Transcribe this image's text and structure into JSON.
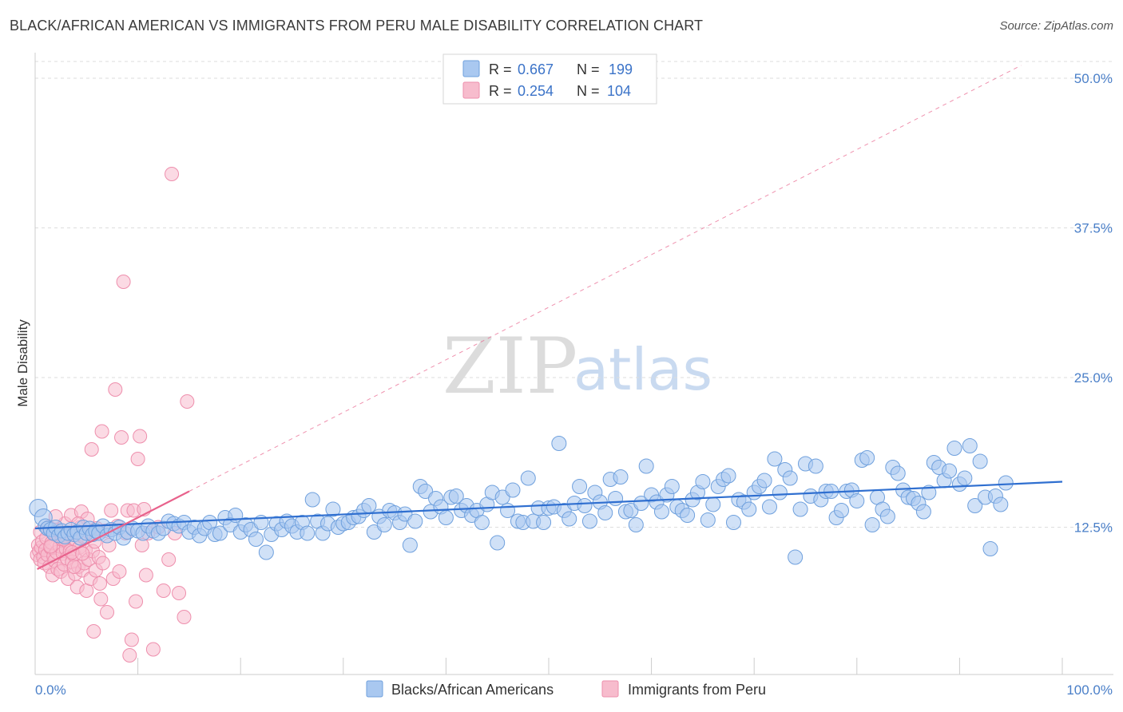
{
  "header": {
    "title": "BLACK/AFRICAN AMERICAN VS IMMIGRANTS FROM PERU MALE DISABILITY CORRELATION CHART",
    "source": "Source: ZipAtlas.com"
  },
  "watermark": {
    "zip": "ZIP",
    "atlas": "atlas"
  },
  "legend": {
    "rows": [
      {
        "r_label": "R = ",
        "r_value": "0.667",
        "n_label": "N = ",
        "n_value": "199",
        "color": "#a9c8f0"
      },
      {
        "r_label": "R = ",
        "r_value": "0.254",
        "n_label": "N = ",
        "n_value": "104",
        "color": "#f5b6c8"
      }
    ]
  },
  "colors": {
    "blue_fill": "#a9c8f0",
    "blue_stroke": "#6fa0dd",
    "blue_line": "#2f6fd0",
    "pink_fill": "#f7bccd",
    "pink_stroke": "#ee8fad",
    "pink_line": "#e8628c",
    "tick_text": "#4a7fc8",
    "grid": "#dddddd"
  },
  "chart_data": {
    "type": "scatter",
    "title": "BLACK/AFRICAN AMERICAN VS IMMIGRANTS FROM PERU MALE DISABILITY CORRELATION CHART",
    "xlabel": "",
    "ylabel": "Male Disability",
    "xlim": [
      0,
      100
    ],
    "ylim": [
      0,
      50
    ],
    "x_tick_labels": [
      "0.0%",
      "100.0%"
    ],
    "y_ticks": [
      12.5,
      25.0,
      37.5,
      50.0
    ],
    "y_tick_labels": [
      "12.5%",
      "25.0%",
      "37.5%",
      "50.0%"
    ],
    "grid": true,
    "legend_position": "top-center",
    "series": [
      {
        "name": "Blacks/African Americans",
        "R": 0.667,
        "N": 199,
        "trend": {
          "x": [
            0,
            100
          ],
          "y": [
            12.4,
            16.3
          ]
        },
        "points": [
          [
            0.3,
            14.1
          ],
          [
            0.8,
            13.3
          ],
          [
            1.0,
            12.6
          ],
          [
            1.2,
            12.4
          ],
          [
            1.5,
            12.3
          ],
          [
            1.8,
            12.0
          ],
          [
            2.0,
            12.5
          ],
          [
            2.3,
            11.8
          ],
          [
            2.6,
            12.2
          ],
          [
            2.9,
            11.7
          ],
          [
            3.2,
            12.0
          ],
          [
            3.5,
            12.3
          ],
          [
            3.8,
            11.9
          ],
          [
            4.1,
            12.1
          ],
          [
            4.4,
            11.6
          ],
          [
            4.7,
            12.5
          ],
          [
            5.0,
            12.0
          ],
          [
            5.3,
            12.4
          ],
          [
            5.6,
            11.9
          ],
          [
            5.9,
            12.2
          ],
          [
            6.2,
            12.0
          ],
          [
            6.6,
            12.6
          ],
          [
            7.0,
            11.8
          ],
          [
            7.4,
            12.3
          ],
          [
            7.8,
            12.0
          ],
          [
            8.2,
            12.5
          ],
          [
            8.6,
            11.6
          ],
          [
            9.0,
            12.1
          ],
          [
            9.5,
            12.4
          ],
          [
            10.0,
            12.2
          ],
          [
            10.5,
            12.0
          ],
          [
            11.0,
            12.6
          ],
          [
            11.5,
            12.2
          ],
          [
            12.0,
            12.0
          ],
          [
            12.5,
            12.4
          ],
          [
            13.0,
            13.0
          ],
          [
            13.5,
            12.8
          ],
          [
            14.0,
            12.6
          ],
          [
            14.5,
            12.9
          ],
          [
            15.0,
            12.1
          ],
          [
            15.5,
            12.5
          ],
          [
            16.0,
            11.8
          ],
          [
            16.5,
            12.4
          ],
          [
            17.0,
            12.9
          ],
          [
            17.5,
            11.9
          ],
          [
            18.0,
            12.0
          ],
          [
            18.5,
            13.3
          ],
          [
            19.0,
            12.7
          ],
          [
            19.5,
            13.5
          ],
          [
            20.0,
            12.1
          ],
          [
            20.5,
            12.7
          ],
          [
            21.0,
            12.3
          ],
          [
            21.5,
            11.5
          ],
          [
            22.0,
            12.9
          ],
          [
            22.5,
            10.4
          ],
          [
            23.0,
            11.9
          ],
          [
            23.5,
            12.8
          ],
          [
            24.0,
            12.3
          ],
          [
            24.5,
            13.0
          ],
          [
            25.0,
            12.6
          ],
          [
            25.5,
            12.1
          ],
          [
            26.0,
            12.9
          ],
          [
            26.5,
            12.0
          ],
          [
            27.0,
            14.8
          ],
          [
            27.5,
            13.0
          ],
          [
            28.0,
            12.0
          ],
          [
            28.5,
            12.8
          ],
          [
            29.0,
            14.0
          ],
          [
            29.5,
            12.5
          ],
          [
            30.0,
            12.8
          ],
          [
            30.5,
            12.9
          ],
          [
            31.0,
            13.3
          ],
          [
            31.5,
            13.4
          ],
          [
            32.0,
            13.9
          ],
          [
            32.5,
            14.3
          ],
          [
            33.0,
            12.1
          ],
          [
            33.5,
            13.4
          ],
          [
            34.0,
            12.7
          ],
          [
            34.5,
            13.9
          ],
          [
            35.0,
            13.7
          ],
          [
            35.5,
            12.9
          ],
          [
            36.0,
            13.6
          ],
          [
            36.5,
            11.0
          ],
          [
            37.0,
            13.0
          ],
          [
            37.5,
            15.9
          ],
          [
            38.0,
            15.5
          ],
          [
            38.5,
            13.8
          ],
          [
            39.0,
            14.9
          ],
          [
            39.5,
            14.2
          ],
          [
            40.0,
            13.3
          ],
          [
            40.5,
            15.0
          ],
          [
            41.0,
            15.1
          ],
          [
            41.5,
            13.9
          ],
          [
            42.0,
            14.3
          ],
          [
            42.5,
            13.5
          ],
          [
            43.0,
            13.9
          ],
          [
            43.5,
            12.9
          ],
          [
            44.0,
            14.4
          ],
          [
            44.5,
            15.4
          ],
          [
            45.0,
            11.2
          ],
          [
            45.5,
            15.0
          ],
          [
            46.0,
            13.9
          ],
          [
            46.5,
            15.6
          ],
          [
            47.0,
            13.0
          ],
          [
            47.5,
            12.9
          ],
          [
            48.0,
            16.6
          ],
          [
            48.5,
            13.0
          ],
          [
            49.0,
            14.1
          ],
          [
            49.5,
            12.9
          ],
          [
            50.0,
            14.1
          ],
          [
            50.5,
            14.2
          ],
          [
            51.0,
            19.5
          ],
          [
            51.5,
            13.9
          ],
          [
            52.0,
            13.2
          ],
          [
            52.5,
            14.5
          ],
          [
            53.0,
            15.9
          ],
          [
            53.5,
            14.3
          ],
          [
            54.0,
            13.0
          ],
          [
            54.5,
            15.4
          ],
          [
            55.0,
            14.6
          ],
          [
            55.5,
            13.7
          ],
          [
            56.0,
            16.5
          ],
          [
            56.5,
            14.9
          ],
          [
            57.0,
            16.7
          ],
          [
            57.5,
            13.8
          ],
          [
            58.0,
            13.9
          ],
          [
            58.5,
            12.7
          ],
          [
            59.0,
            14.5
          ],
          [
            59.5,
            17.6
          ],
          [
            60.0,
            15.2
          ],
          [
            60.5,
            14.6
          ],
          [
            61.0,
            13.8
          ],
          [
            61.5,
            15.2
          ],
          [
            62.0,
            15.9
          ],
          [
            62.5,
            14.2
          ],
          [
            63.0,
            13.9
          ],
          [
            63.5,
            13.5
          ],
          [
            64.0,
            14.8
          ],
          [
            64.5,
            15.4
          ],
          [
            65.0,
            16.3
          ],
          [
            65.5,
            13.1
          ],
          [
            66.0,
            14.4
          ],
          [
            66.5,
            15.9
          ],
          [
            67.0,
            16.5
          ],
          [
            67.5,
            16.8
          ],
          [
            68.0,
            12.9
          ],
          [
            68.5,
            14.8
          ],
          [
            69.0,
            14.6
          ],
          [
            69.5,
            14.0
          ],
          [
            70.0,
            15.4
          ],
          [
            70.5,
            15.9
          ],
          [
            71.0,
            16.4
          ],
          [
            71.5,
            14.2
          ],
          [
            72.0,
            18.2
          ],
          [
            72.5,
            15.4
          ],
          [
            73.0,
            17.3
          ],
          [
            73.5,
            16.6
          ],
          [
            74.0,
            10.0
          ],
          [
            74.5,
            14.0
          ],
          [
            75.0,
            17.8
          ],
          [
            75.5,
            15.1
          ],
          [
            76.0,
            17.6
          ],
          [
            76.5,
            14.8
          ],
          [
            77.0,
            15.5
          ],
          [
            77.5,
            15.5
          ],
          [
            78.0,
            13.3
          ],
          [
            78.5,
            13.9
          ],
          [
            79.0,
            15.5
          ],
          [
            79.5,
            15.6
          ],
          [
            80.0,
            14.7
          ],
          [
            80.5,
            18.1
          ],
          [
            81.0,
            18.3
          ],
          [
            81.5,
            12.7
          ],
          [
            82.0,
            15.0
          ],
          [
            82.5,
            14.0
          ],
          [
            83.0,
            13.4
          ],
          [
            83.5,
            17.5
          ],
          [
            84.0,
            17.0
          ],
          [
            84.5,
            15.6
          ],
          [
            85.0,
            15.0
          ],
          [
            85.5,
            14.9
          ],
          [
            86.0,
            14.5
          ],
          [
            86.5,
            13.8
          ],
          [
            87.0,
            15.4
          ],
          [
            87.5,
            17.9
          ],
          [
            88.0,
            17.5
          ],
          [
            88.5,
            16.4
          ],
          [
            89.0,
            17.2
          ],
          [
            89.5,
            19.1
          ],
          [
            90.0,
            16.1
          ],
          [
            90.5,
            16.6
          ],
          [
            91.0,
            19.3
          ],
          [
            91.5,
            14.3
          ],
          [
            92.0,
            18.0
          ],
          [
            92.5,
            15.0
          ],
          [
            93.0,
            10.7
          ],
          [
            93.5,
            15.1
          ],
          [
            94.0,
            14.4
          ],
          [
            94.5,
            16.2
          ]
        ]
      },
      {
        "name": "Immigrants from Peru",
        "R": 0.254,
        "N": 104,
        "trend": {
          "x": [
            0.2,
            15.0
          ],
          "y": [
            9.0,
            15.5
          ]
        },
        "points": [
          [
            0.2,
            10.2
          ],
          [
            0.3,
            11.0
          ],
          [
            0.4,
            10.5
          ],
          [
            0.5,
            9.8
          ],
          [
            0.5,
            12.1
          ],
          [
            0.6,
            10.8
          ],
          [
            0.7,
            11.3
          ],
          [
            0.8,
            10.0
          ],
          [
            0.9,
            9.5
          ],
          [
            1.0,
            10.6
          ],
          [
            1.1,
            11.6
          ],
          [
            1.2,
            10.2
          ],
          [
            1.3,
            12.5
          ],
          [
            1.4,
            9.2
          ],
          [
            1.5,
            10.8
          ],
          [
            1.6,
            11.2
          ],
          [
            1.7,
            8.5
          ],
          [
            1.8,
            10.1
          ],
          [
            1.9,
            9.7
          ],
          [
            2.0,
            11.9
          ],
          [
            2.1,
            10.4
          ],
          [
            2.2,
            9.0
          ],
          [
            2.3,
            12.2
          ],
          [
            2.4,
            10.9
          ],
          [
            2.5,
            8.8
          ],
          [
            2.6,
            11.5
          ],
          [
            2.7,
            10.3
          ],
          [
            2.8,
            9.4
          ],
          [
            2.9,
            12.8
          ],
          [
            3.0,
            10.7
          ],
          [
            3.1,
            9.9
          ],
          [
            3.2,
            8.2
          ],
          [
            3.3,
            11.1
          ],
          [
            3.4,
            10.5
          ],
          [
            3.5,
            13.5
          ],
          [
            3.6,
            9.6
          ],
          [
            3.7,
            12.0
          ],
          [
            3.8,
            10.2
          ],
          [
            3.9,
            8.6
          ],
          [
            4.0,
            11.4
          ],
          [
            4.1,
            7.5
          ],
          [
            4.2,
            9.2
          ],
          [
            4.3,
            10.8
          ],
          [
            4.4,
            12.5
          ],
          [
            4.5,
            13.8
          ],
          [
            4.6,
            8.9
          ],
          [
            4.7,
            11.7
          ],
          [
            4.8,
            9.5
          ],
          [
            4.9,
            10.6
          ],
          [
            5.0,
            7.2
          ],
          [
            5.1,
            13.2
          ],
          [
            5.2,
            9.8
          ],
          [
            5.3,
            12.0
          ],
          [
            5.4,
            8.2
          ],
          [
            5.5,
            19.0
          ],
          [
            5.6,
            10.5
          ],
          [
            5.7,
            3.8
          ],
          [
            5.8,
            11.3
          ],
          [
            5.9,
            8.9
          ],
          [
            6.0,
            12.4
          ],
          [
            6.2,
            10.0
          ],
          [
            6.3,
            7.8
          ],
          [
            6.4,
            6.5
          ],
          [
            6.5,
            20.5
          ],
          [
            6.6,
            9.5
          ],
          [
            6.8,
            12.2
          ],
          [
            7.0,
            5.4
          ],
          [
            7.2,
            11.0
          ],
          [
            7.4,
            13.9
          ],
          [
            7.6,
            8.2
          ],
          [
            7.8,
            24.0
          ],
          [
            8.0,
            12.6
          ],
          [
            8.2,
            8.8
          ],
          [
            8.4,
            20.0
          ],
          [
            8.6,
            33.0
          ],
          [
            8.8,
            12.0
          ],
          [
            9.0,
            13.9
          ],
          [
            9.2,
            1.8
          ],
          [
            9.4,
            3.1
          ],
          [
            9.6,
            13.9
          ],
          [
            9.8,
            6.3
          ],
          [
            10.0,
            18.2
          ],
          [
            10.2,
            20.1
          ],
          [
            10.4,
            11.0
          ],
          [
            10.6,
            14.0
          ],
          [
            10.8,
            8.5
          ],
          [
            11.0,
            12.0
          ],
          [
            11.5,
            2.3
          ],
          [
            12.0,
            12.5
          ],
          [
            12.5,
            7.2
          ],
          [
            13.0,
            9.8
          ],
          [
            13.3,
            42.0
          ],
          [
            13.6,
            12.0
          ],
          [
            14.0,
            7.0
          ],
          [
            14.5,
            5.0
          ],
          [
            14.8,
            23.0
          ],
          [
            3.0,
            11.8
          ],
          [
            3.6,
            10.4
          ],
          [
            4.2,
            12.8
          ],
          [
            2.0,
            13.4
          ],
          [
            1.5,
            10.9
          ],
          [
            2.8,
            11.5
          ],
          [
            3.8,
            9.2
          ],
          [
            4.6,
            10.3
          ]
        ]
      }
    ]
  }
}
